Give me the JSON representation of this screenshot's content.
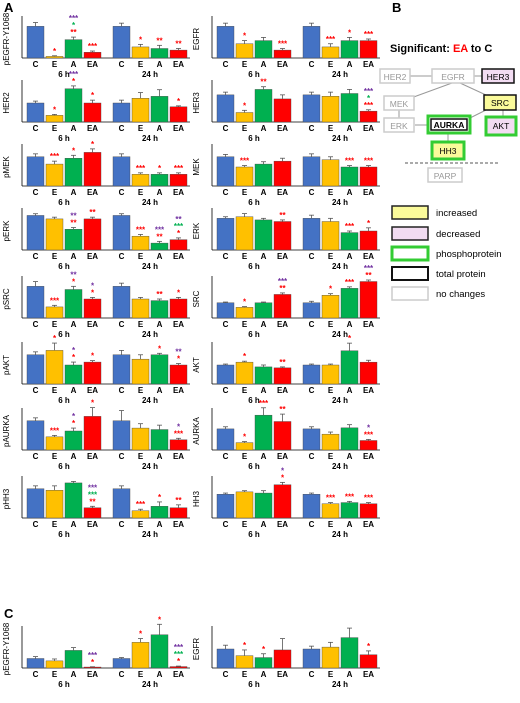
{
  "panel_labels": {
    "a": "A",
    "b": "B",
    "c": "C"
  },
  "legend": {
    "title_prefix": "Significant: ",
    "title_highlight": "EA",
    "title_suffix": " to C",
    "items": [
      {
        "label": "increased",
        "fill": "#fafa9a",
        "stroke": "#222222"
      },
      {
        "label": "decreased",
        "fill": "#f2dcf2",
        "stroke": "#222222"
      },
      {
        "label": "phosphoprotein",
        "fill": "#ffffff",
        "stroke": "#33cc33"
      },
      {
        "label": "total protein",
        "fill": "#ffffff",
        "stroke": "#111111"
      },
      {
        "label": "no changes",
        "fill": "#ffffff",
        "stroke": "#cccccc"
      }
    ]
  },
  "pathway": {
    "nodes": [
      {
        "id": "her2",
        "label": "HER2",
        "style": "nochange"
      },
      {
        "id": "egfr",
        "label": "EGFR",
        "style": "nochange"
      },
      {
        "id": "her3",
        "label": "HER3",
        "style": "total_decreased"
      },
      {
        "id": "mek",
        "label": "MEK",
        "style": "nochange"
      },
      {
        "id": "src",
        "label": "SRC",
        "style": "total_increased"
      },
      {
        "id": "erk",
        "label": "ERK",
        "style": "nochange"
      },
      {
        "id": "aurka",
        "label": "AURKA",
        "style": "both"
      },
      {
        "id": "akt",
        "label": "AKT",
        "style": "phospho_decreased"
      },
      {
        "id": "hh3",
        "label": "HH3",
        "style": "phospho_increased"
      },
      {
        "id": "parp",
        "label": "PARP",
        "style": "nochange"
      }
    ]
  },
  "colors": {
    "C": "#4472c4",
    "E": "#ffc000",
    "A": "#00b050",
    "EA": "#ff0000",
    "sig_E": "#ff0000",
    "sig_A": "#7030a0",
    "sig_green": "#00b050",
    "sig_orange": "#f4a460"
  },
  "chart_data": [
    {
      "type": "bar",
      "panel": "A",
      "protein": "pEGFR-Y1068",
      "ylabel": "pEGFR-Y1068",
      "categories": [
        "C",
        "E",
        "A",
        "EA"
      ],
      "groups": [
        "6 h",
        "24 h"
      ],
      "series": [
        {
          "values": [
            1.0,
            0.05,
            0.58,
            0.18
          ],
          "errors": [
            0.12,
            0.02,
            0.08,
            0.04
          ],
          "sig": [
            "",
            "*",
            "*** * **",
            "***"
          ]
        },
        {
          "values": [
            1.0,
            0.35,
            0.3,
            0.25
          ],
          "errors": [
            0.1,
            0.08,
            0.1,
            0.05
          ],
          "sig": [
            "",
            "*",
            "**",
            "**"
          ]
        }
      ]
    },
    {
      "type": "bar",
      "panel": "A",
      "protein": "EGFR",
      "ylabel": "EGFR",
      "categories": [
        "C",
        "E",
        "A",
        "EA"
      ],
      "groups": [
        "6 h",
        "24 h"
      ],
      "series": [
        {
          "values": [
            1.0,
            0.45,
            0.55,
            0.25
          ],
          "errors": [
            0.1,
            0.1,
            0.1,
            0.05
          ],
          "sig": [
            "",
            "*",
            "",
            "***"
          ]
        },
        {
          "values": [
            1.0,
            0.35,
            0.55,
            0.55
          ],
          "errors": [
            0.1,
            0.1,
            0.1,
            0.05
          ],
          "sig": [
            "",
            "***",
            "*",
            "***"
          ]
        }
      ]
    },
    {
      "type": "bar",
      "panel": "A",
      "protein": "HER2",
      "ylabel": "HER2",
      "categories": [
        "C",
        "E",
        "A",
        "EA"
      ],
      "groups": [
        "6 h",
        "24 h"
      ],
      "series": [
        {
          "values": [
            1.0,
            0.35,
            1.75,
            1.0
          ],
          "errors": [
            0.1,
            0.05,
            0.15,
            0.15
          ],
          "sig": [
            "",
            "*",
            "*** *",
            "*"
          ]
        },
        {
          "values": [
            1.0,
            1.25,
            1.35,
            0.8
          ],
          "errors": [
            0.15,
            0.3,
            0.35,
            0.05
          ],
          "sig": [
            "",
            "",
            "",
            "*"
          ]
        }
      ]
    },
    {
      "type": "bar",
      "panel": "A",
      "protein": "HER3",
      "ylabel": "HER3",
      "categories": [
        "C",
        "E",
        "A",
        "EA"
      ],
      "groups": [
        "6 h",
        "24 h"
      ],
      "series": [
        {
          "values": [
            1.0,
            0.35,
            1.2,
            0.85
          ],
          "errors": [
            0.1,
            0.08,
            0.1,
            0.15
          ],
          "sig": [
            "",
            "*",
            "**",
            ""
          ]
        },
        {
          "values": [
            1.0,
            0.95,
            1.05,
            0.4
          ],
          "errors": [
            0.1,
            0.15,
            0.15,
            0.05
          ],
          "sig": [
            "",
            "",
            "",
            "*** * ***"
          ]
        }
      ]
    },
    {
      "type": "bar",
      "panel": "A",
      "protein": "pMEK",
      "ylabel": "pMEK",
      "categories": [
        "C",
        "E",
        "A",
        "EA"
      ],
      "groups": [
        "6 h",
        "24 h"
      ],
      "series": [
        {
          "values": [
            1.0,
            0.75,
            0.95,
            1.15
          ],
          "errors": [
            0.1,
            0.1,
            0.1,
            0.12
          ],
          "sig": [
            "",
            "***",
            "*",
            "*"
          ]
        },
        {
          "values": [
            1.0,
            0.4,
            0.4,
            0.4
          ],
          "errors": [
            0.1,
            0.05,
            0.05,
            0.05
          ],
          "sig": [
            "",
            "***",
            "*",
            "***"
          ]
        }
      ]
    },
    {
      "type": "bar",
      "panel": "A",
      "protein": "MEK",
      "ylabel": "MEK",
      "categories": [
        "C",
        "E",
        "A",
        "EA"
      ],
      "groups": [
        "6 h",
        "24 h"
      ],
      "series": [
        {
          "values": [
            1.0,
            0.65,
            0.75,
            0.85
          ],
          "errors": [
            0.08,
            0.05,
            0.08,
            0.1
          ],
          "sig": [
            "",
            "***",
            "",
            ""
          ]
        },
        {
          "values": [
            1.0,
            0.9,
            0.65,
            0.65
          ],
          "errors": [
            0.1,
            0.1,
            0.05,
            0.05
          ],
          "sig": [
            "",
            "",
            "***",
            "***"
          ]
        }
      ]
    },
    {
      "type": "bar",
      "panel": "A",
      "protein": "pERK",
      "ylabel": "pERK",
      "categories": [
        "C",
        "E",
        "A",
        "EA"
      ],
      "groups": [
        "6 h",
        "24 h"
      ],
      "series": [
        {
          "values": [
            1.0,
            0.9,
            0.6,
            0.9
          ],
          "errors": [
            0.05,
            0.05,
            0.05,
            0.05
          ],
          "sig": [
            "",
            "",
            "** **",
            "**"
          ]
        },
        {
          "values": [
            1.0,
            0.4,
            0.2,
            0.3
          ],
          "errors": [
            0.05,
            0.05,
            0.05,
            0.05
          ],
          "sig": [
            "",
            "***",
            "*** **",
            "** *** *"
          ]
        }
      ]
    },
    {
      "type": "bar",
      "panel": "A",
      "protein": "ERK",
      "ylabel": "ERK",
      "categories": [
        "C",
        "E",
        "A",
        "EA"
      ],
      "groups": [
        "6 h",
        "24 h"
      ],
      "series": [
        {
          "values": [
            1.0,
            1.05,
            0.95,
            0.9
          ],
          "errors": [
            0.05,
            0.1,
            0.05,
            0.05
          ],
          "sig": [
            "",
            "",
            "",
            "**"
          ]
        },
        {
          "values": [
            1.0,
            0.9,
            0.55,
            0.6
          ],
          "errors": [
            0.1,
            0.1,
            0.05,
            0.1
          ],
          "sig": [
            "",
            "",
            "***",
            "*"
          ]
        }
      ]
    },
    {
      "type": "bar",
      "panel": "A",
      "protein": "pSRC",
      "ylabel": "pSRC",
      "categories": [
        "C",
        "E",
        "A",
        "EA"
      ],
      "groups": [
        "6 h",
        "24 h"
      ],
      "series": [
        {
          "values": [
            1.0,
            0.35,
            0.9,
            0.6
          ],
          "errors": [
            0.15,
            0.05,
            0.1,
            0.05
          ],
          "sig": [
            "",
            "***",
            "** *",
            "* *"
          ]
        },
        {
          "values": [
            1.0,
            0.6,
            0.55,
            0.6
          ],
          "errors": [
            0.1,
            0.05,
            0.05,
            0.05
          ],
          "sig": [
            "",
            "",
            "**",
            "*"
          ]
        }
      ]
    },
    {
      "type": "bar",
      "panel": "A",
      "protein": "SRC",
      "ylabel": "SRC",
      "categories": [
        "C",
        "E",
        "A",
        "EA"
      ],
      "groups": [
        "6 h",
        "24 h"
      ],
      "series": [
        {
          "values": [
            1.0,
            0.7,
            1.0,
            1.55
          ],
          "errors": [
            0.05,
            0.05,
            0.05,
            0.1
          ],
          "sig": [
            "",
            "*",
            "",
            "*** **"
          ]
        },
        {
          "values": [
            1.0,
            1.5,
            1.95,
            2.4
          ],
          "errors": [
            0.1,
            0.1,
            0.1,
            0.1
          ],
          "sig": [
            "",
            "*",
            "***",
            "*** **"
          ]
        }
      ]
    },
    {
      "type": "bar",
      "panel": "A",
      "protein": "pAKT",
      "ylabel": "pAKT",
      "categories": [
        "C",
        "E",
        "A",
        "EA"
      ],
      "groups": [
        "6 h",
        "24 h"
      ],
      "series": [
        {
          "values": [
            1.0,
            1.15,
            0.65,
            0.75
          ],
          "errors": [
            0.1,
            0.25,
            0.1,
            0.05
          ],
          "sig": [
            "",
            "*",
            "* *",
            "*"
          ]
        },
        {
          "values": [
            1.0,
            0.85,
            1.0,
            0.65
          ],
          "errors": [
            0.15,
            0.15,
            0.05,
            0.05
          ],
          "sig": [
            "",
            "",
            "*",
            "** *"
          ]
        }
      ]
    },
    {
      "type": "bar",
      "panel": "A",
      "protein": "AKT",
      "ylabel": "AKT",
      "categories": [
        "C",
        "E",
        "A",
        "EA"
      ],
      "groups": [
        "6 h",
        "24 h"
      ],
      "series": [
        {
          "values": [
            1.0,
            1.15,
            0.9,
            0.85
          ],
          "errors": [
            0.05,
            0.05,
            0.1,
            0.05
          ],
          "sig": [
            "",
            "*",
            "",
            "**"
          ]
        },
        {
          "values": [
            1.0,
            1.0,
            1.75,
            1.15
          ],
          "errors": [
            0.05,
            0.05,
            0.4,
            0.1
          ],
          "sig": [
            "",
            "",
            "*",
            ""
          ]
        }
      ]
    },
    {
      "type": "bar",
      "panel": "A",
      "protein": "pAURKA",
      "ylabel": "pAURKA",
      "categories": [
        "C",
        "E",
        "A",
        "EA"
      ],
      "groups": [
        "6 h",
        "24 h"
      ],
      "series": [
        {
          "values": [
            1.0,
            0.45,
            0.65,
            1.15
          ],
          "errors": [
            0.1,
            0.05,
            0.1,
            0.3
          ],
          "sig": [
            "",
            "***",
            "* *",
            "*"
          ]
        },
        {
          "values": [
            1.0,
            0.75,
            0.7,
            0.35
          ],
          "errors": [
            0.35,
            0.15,
            0.15,
            0.05
          ],
          "sig": [
            "",
            "",
            "",
            "* ***"
          ]
        }
      ]
    },
    {
      "type": "bar",
      "panel": "A",
      "protein": "AURKA",
      "ylabel": "AURKA",
      "categories": [
        "C",
        "E",
        "A",
        "EA"
      ],
      "groups": [
        "6 h",
        "24 h"
      ],
      "series": [
        {
          "values": [
            1.0,
            0.35,
            1.65,
            1.35
          ],
          "errors": [
            0.1,
            0.05,
            0.35,
            0.35
          ],
          "sig": [
            "",
            "*",
            "***",
            "**"
          ]
        },
        {
          "values": [
            1.0,
            0.75,
            1.05,
            0.45
          ],
          "errors": [
            0.1,
            0.1,
            0.15,
            0.05
          ],
          "sig": [
            "",
            "",
            "",
            "* ***"
          ]
        }
      ]
    },
    {
      "type": "bar",
      "panel": "A",
      "protein": "pHH3",
      "ylabel": "pHH3",
      "categories": [
        "C",
        "E",
        "A",
        "EA"
      ],
      "groups": [
        "6 h",
        "24 h"
      ],
      "series": [
        {
          "values": [
            1.0,
            0.95,
            1.2,
            0.35
          ],
          "errors": [
            0.1,
            0.15,
            0.05,
            0.05
          ],
          "sig": [
            "",
            "",
            "",
            "*** *** **"
          ]
        },
        {
          "values": [
            1.0,
            0.25,
            0.4,
            0.35
          ],
          "errors": [
            0.1,
            0.05,
            0.15,
            0.1
          ],
          "sig": [
            "",
            "***",
            "*",
            "**"
          ]
        }
      ]
    },
    {
      "type": "bar",
      "panel": "A",
      "protein": "HH3",
      "ylabel": "HH3",
      "categories": [
        "C",
        "E",
        "A",
        "EA"
      ],
      "groups": [
        "6 h",
        "24 h"
      ],
      "series": [
        {
          "values": [
            1.0,
            1.1,
            1.05,
            1.4
          ],
          "errors": [
            0.05,
            0.05,
            0.1,
            0.1
          ],
          "sig": [
            "",
            "",
            "",
            "* *"
          ]
        },
        {
          "values": [
            1.0,
            0.6,
            0.65,
            0.6
          ],
          "errors": [
            0.05,
            0.05,
            0.05,
            0.05
          ],
          "sig": [
            "",
            "***",
            "***",
            "***"
          ]
        }
      ]
    },
    {
      "type": "bar",
      "panel": "C",
      "protein": "pEGFR-Y1068",
      "ylabel": "pEGFR-Y1068",
      "categories": [
        "C",
        "E",
        "A",
        "EA"
      ],
      "groups": [
        "6 h",
        "24 h"
      ],
      "series": [
        {
          "values": [
            1.0,
            0.75,
            1.85,
            0.1
          ],
          "errors": [
            0.2,
            0.2,
            0.3,
            0.03
          ],
          "sig": [
            "",
            "",
            "",
            "*** *"
          ]
        },
        {
          "values": [
            1.0,
            2.7,
            3.5,
            0.15
          ],
          "errors": [
            0.1,
            0.4,
            1.1,
            0.05
          ],
          "sig": [
            "",
            "*",
            "*",
            "*** *** *"
          ]
        }
      ]
    },
    {
      "type": "bar",
      "panel": "C",
      "protein": "EGFR",
      "ylabel": "EGFR",
      "categories": [
        "C",
        "E",
        "A",
        "EA"
      ],
      "groups": [
        "6 h",
        "24 h"
      ],
      "series": [
        {
          "values": [
            1.0,
            0.65,
            0.55,
            0.95
          ],
          "errors": [
            0.2,
            0.3,
            0.2,
            0.6
          ],
          "sig": [
            "",
            "*",
            "*",
            ""
          ]
        },
        {
          "values": [
            1.0,
            1.1,
            1.6,
            0.7
          ],
          "errors": [
            0.15,
            0.25,
            0.5,
            0.2
          ],
          "sig": [
            "",
            "",
            "",
            "*"
          ]
        }
      ]
    }
  ]
}
